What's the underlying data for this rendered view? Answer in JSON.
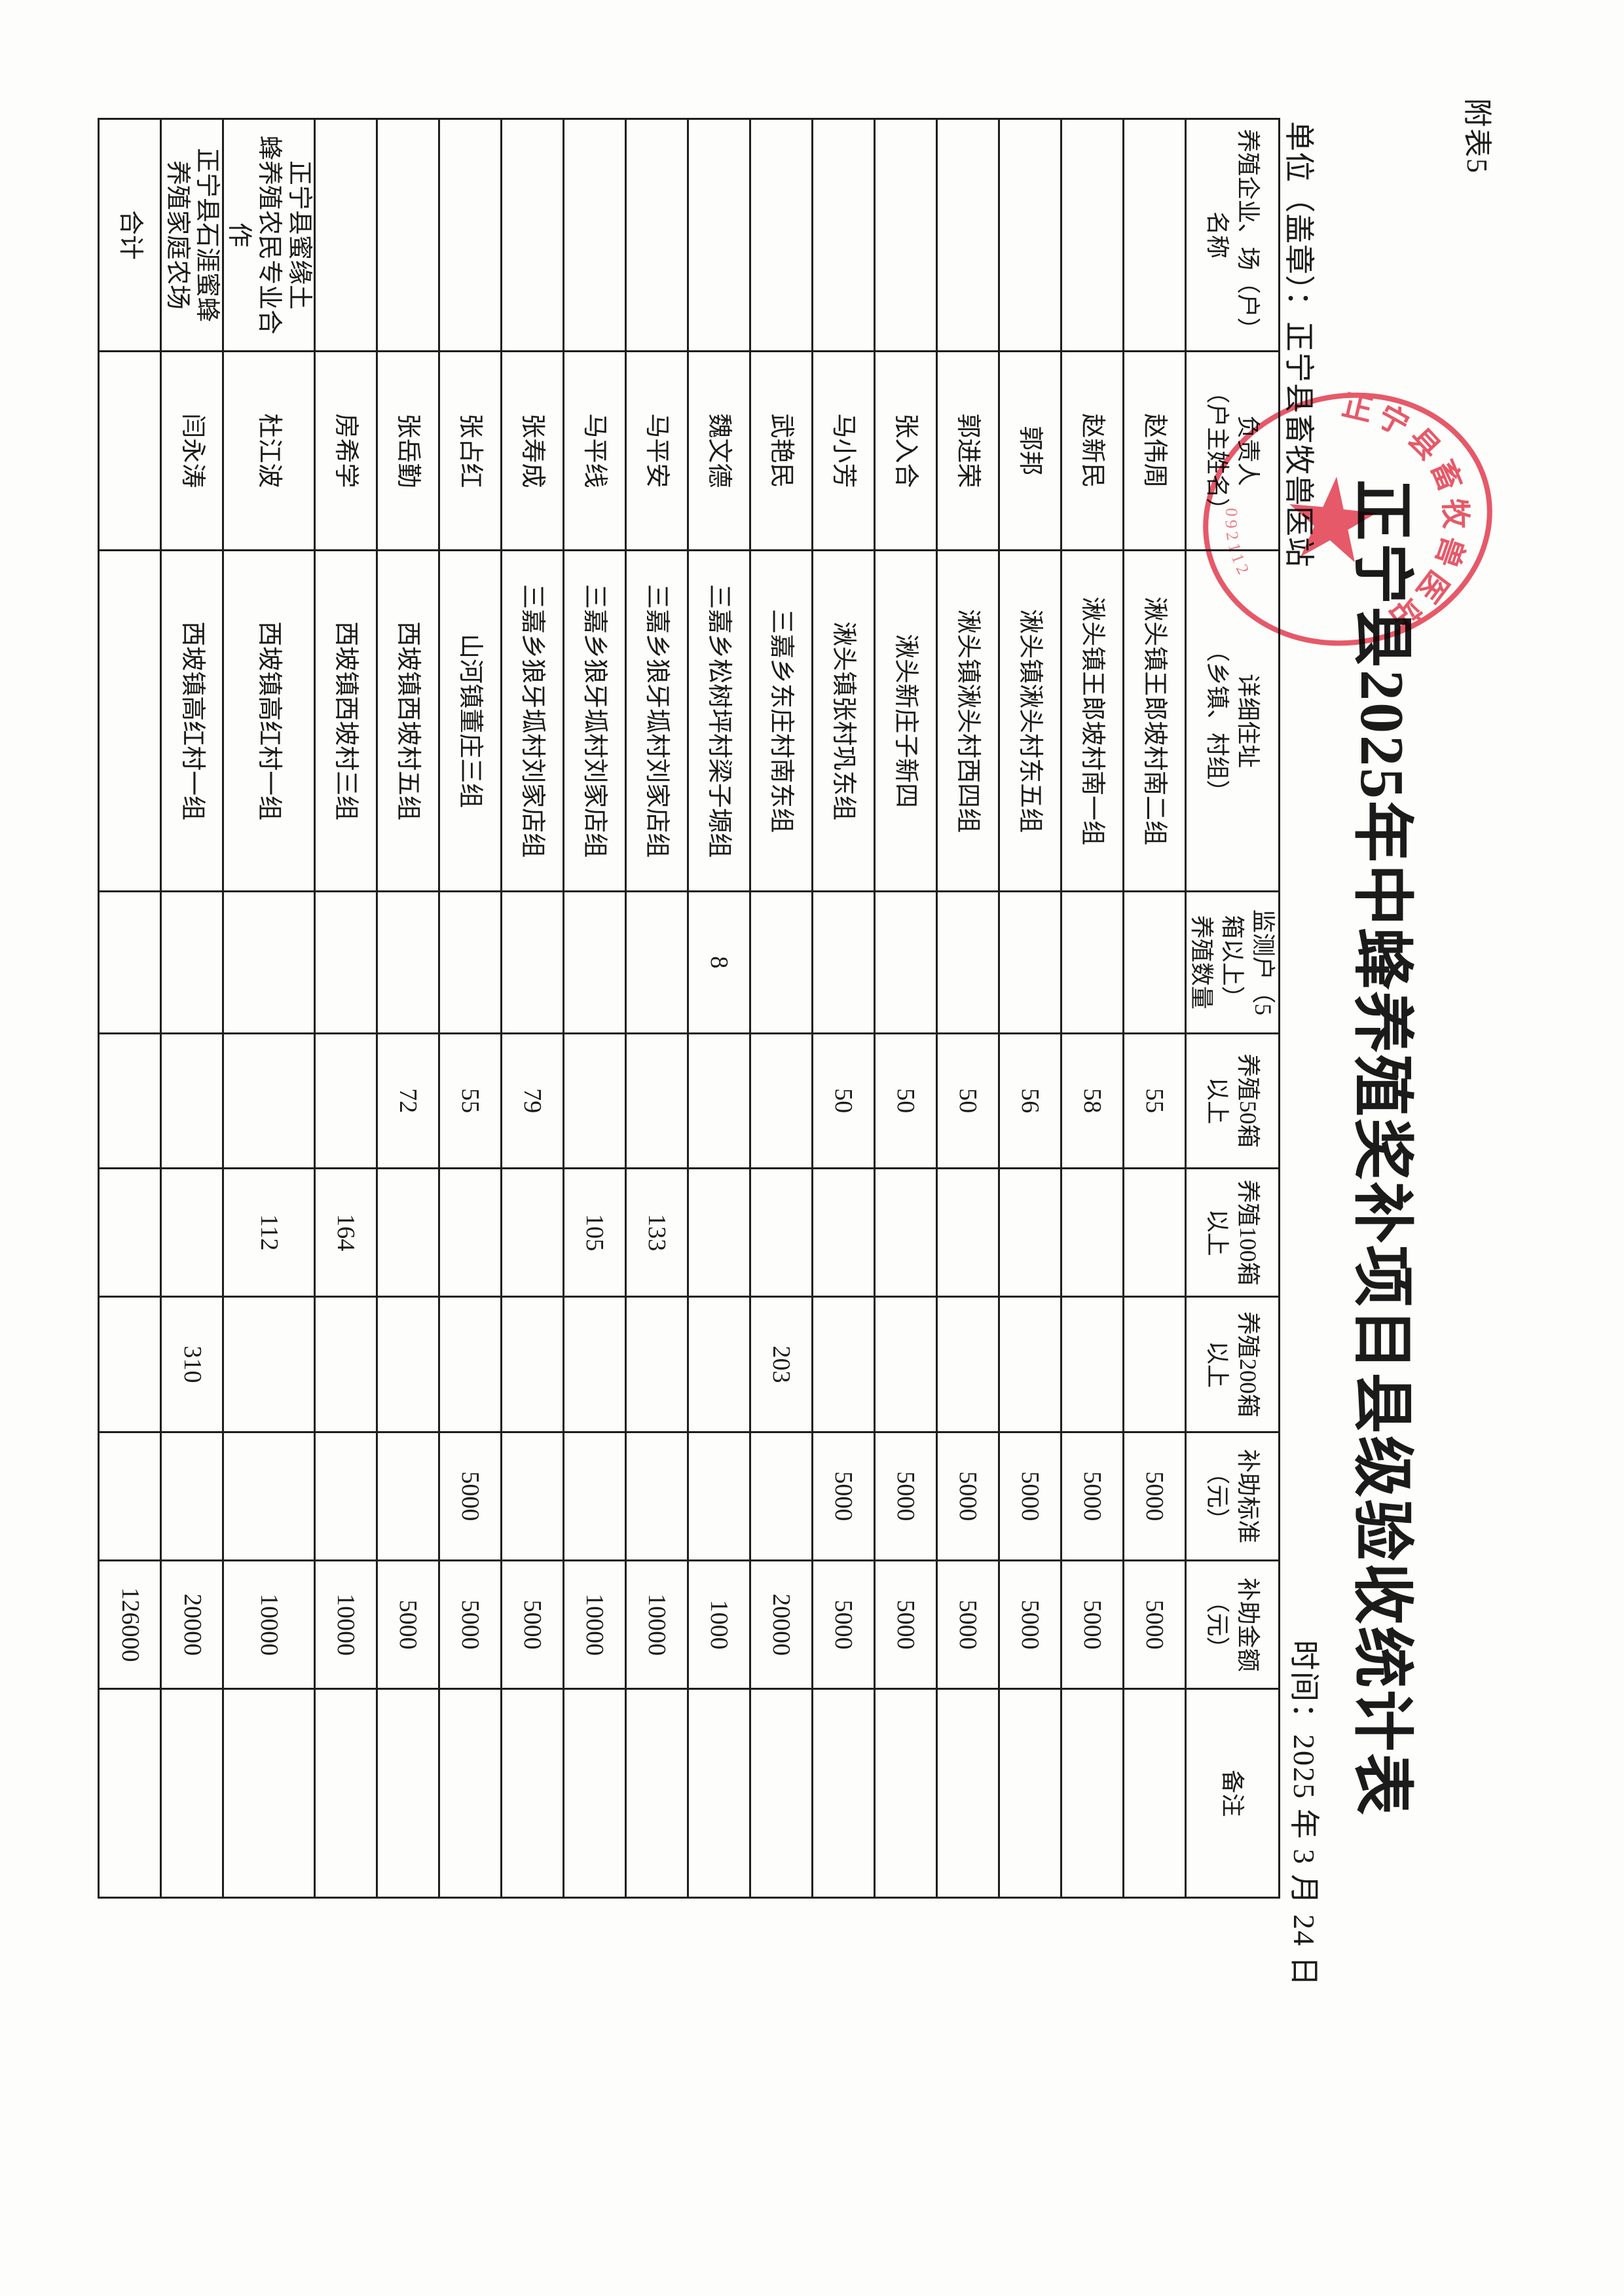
{
  "page": {
    "appendix_tag": "附表5",
    "title": "正宁县2025年中蜂养殖奖补项目县级验收统计表",
    "unit_label": "单位（盖章）：",
    "unit_name": "正宁县畜牧兽医站",
    "date_label": "时间：",
    "date_value": "2025 年 3 月 24 日"
  },
  "stamp": {
    "arc_text": "正宁县畜牧兽医站",
    "code_fragment": "092112",
    "color": "#e23b4e"
  },
  "table": {
    "columns": [
      "养殖企业、场（户）\n名称",
      "负责人\n（户主姓名）",
      "详细住址\n（乡镇、村组）",
      "监测户（5\n箱以上）\n养殖数量",
      "养殖50箱\n以上",
      "养殖100箱\n以上",
      "养殖200箱\n以上",
      "补助标准\n（元）",
      "补助金额\n（元）",
      "备注"
    ],
    "rows": [
      {
        "cells": [
          "",
          "赵伟周",
          "湫头镇王郎坡村南二组",
          "",
          "55",
          "",
          "",
          "5000",
          "5000",
          ""
        ]
      },
      {
        "cells": [
          "",
          "赵新民",
          "湫头镇王郎坡村南一组",
          "",
          "58",
          "",
          "",
          "5000",
          "5000",
          ""
        ]
      },
      {
        "cells": [
          "",
          "郭邦",
          "湫头镇湫头村东五组",
          "",
          "56",
          "",
          "",
          "5000",
          "5000",
          ""
        ]
      },
      {
        "cells": [
          "",
          "郭进荣",
          "湫头镇湫头村西四组",
          "",
          "50",
          "",
          "",
          "5000",
          "5000",
          ""
        ]
      },
      {
        "cells": [
          "",
          "张入合",
          "湫头新庄子新四",
          "",
          "50",
          "",
          "",
          "5000",
          "5000",
          ""
        ]
      },
      {
        "cells": [
          "",
          "马小芳",
          "湫头镇张村巩东组",
          "",
          "50",
          "",
          "",
          "5000",
          "5000",
          ""
        ]
      },
      {
        "cells": [
          "",
          "武艳民",
          "三嘉乡东庄村南东组",
          "",
          "",
          "",
          "203",
          "",
          "20000",
          ""
        ]
      },
      {
        "cells": [
          "",
          "魏文德",
          "三嘉乡松树坪村梁子塬组",
          "8",
          "",
          "",
          "",
          "",
          "1000",
          ""
        ]
      },
      {
        "cells": [
          "",
          "马平安",
          "三嘉乡狼牙坬村刘家店组",
          "",
          "",
          "133",
          "",
          "",
          "10000",
          ""
        ]
      },
      {
        "cells": [
          "",
          "马平线",
          "三嘉乡狼牙坬村刘家店组",
          "",
          "",
          "105",
          "",
          "",
          "10000",
          ""
        ]
      },
      {
        "cells": [
          "",
          "张寿成",
          "三嘉乡狼牙坬村刘家店组",
          "",
          "79",
          "",
          "",
          "",
          "5000",
          ""
        ]
      },
      {
        "cells": [
          "",
          "张占红",
          "山河镇董庄三组",
          "",
          "55",
          "",
          "",
          "5000",
          "5000",
          ""
        ]
      },
      {
        "cells": [
          "",
          "张岳勤",
          "西坡镇西坡村五组",
          "",
          "72",
          "",
          "",
          "",
          "5000",
          ""
        ]
      },
      {
        "cells": [
          "",
          "房希学",
          "西坡镇西坡村三组",
          "",
          "",
          "164",
          "",
          "",
          "10000",
          ""
        ]
      },
      {
        "cells": [
          "正宁县蜜缘土\n蜂养殖农民专业合作",
          "杜江波",
          "西坡镇高红村一组",
          "",
          "",
          "112",
          "",
          "",
          "10000",
          ""
        ]
      },
      {
        "cells": [
          "正宁县石涯蜜蜂\n养殖家庭农场",
          "闫永涛",
          "西坡镇高红村一组",
          "",
          "",
          "",
          "310",
          "",
          "20000",
          ""
        ]
      },
      {
        "cells": [
          "合计",
          "",
          "",
          "",
          "",
          "",
          "",
          "",
          "126000",
          ""
        ]
      }
    ]
  }
}
